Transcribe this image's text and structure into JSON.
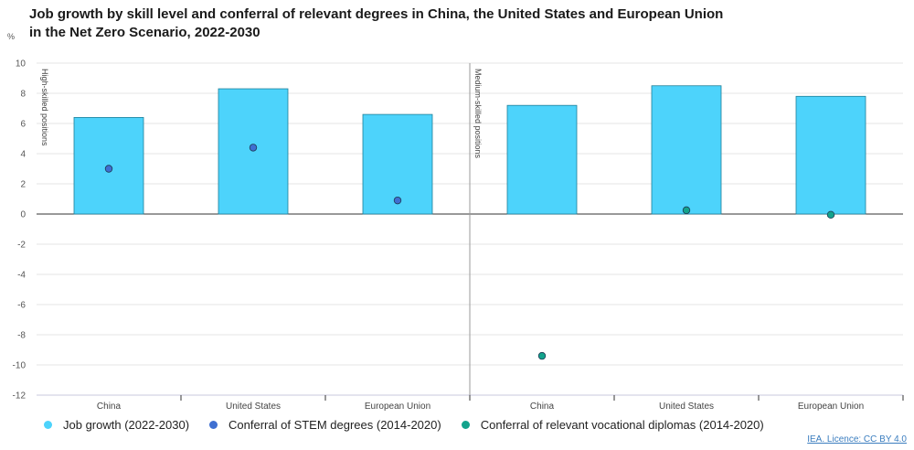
{
  "header": {
    "title_line1": "Job growth by skill level and conferral of relevant degrees in China, the United States and European Union",
    "title_line2": "in the Net Zero Scenario, 2022-2030",
    "unit": "%"
  },
  "legend": {
    "items": [
      {
        "label": "Job growth (2022-2030)",
        "color": "#4dd3fb"
      },
      {
        "label": "Conferral of STEM degrees (2014-2020)",
        "color": "#3f6fd1"
      },
      {
        "label": "Conferral of relevant vocational diplomas (2014-2020)",
        "color": "#13a38c"
      }
    ]
  },
  "footer": {
    "credit": "IEA. Licence: CC BY 4.0"
  },
  "chart_data": {
    "type": "bar",
    "ylim": [
      -12,
      10
    ],
    "yticks": [
      10,
      8,
      6,
      4,
      2,
      0,
      -2,
      -4,
      -6,
      -8,
      -10,
      -12
    ],
    "grid": true,
    "legend_position": "bottom",
    "colors": {
      "bar": "#4dd3fb",
      "bar_stroke": "#1f7f99",
      "stem": "#3f6fd1",
      "vocational": "#13a38c"
    },
    "groups": [
      {
        "label": "High-skilled positions",
        "categories": [
          "China",
          "United States",
          "European Union"
        ],
        "series": [
          {
            "name": "Job growth (2022-2030)",
            "values": [
              6.4,
              8.3,
              6.6
            ]
          },
          {
            "name": "Conferral of STEM degrees (2014-2020)",
            "values": [
              3.0,
              4.4,
              0.9
            ]
          }
        ]
      },
      {
        "label": "Medium-skilled positions",
        "categories": [
          "China",
          "United States",
          "European Union"
        ],
        "series": [
          {
            "name": "Job growth (2022-2030)",
            "values": [
              7.2,
              8.5,
              7.8
            ]
          },
          {
            "name": "Conferral of relevant vocational diplomas (2014-2020)",
            "values": [
              -9.4,
              0.25,
              -0.05
            ]
          }
        ]
      }
    ]
  }
}
